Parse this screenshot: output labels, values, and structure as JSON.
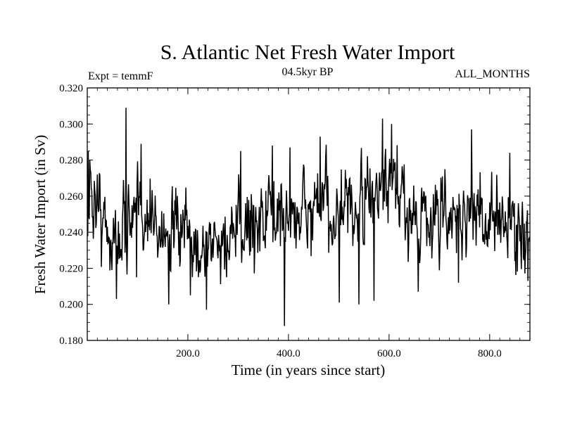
{
  "chart_data": {
    "type": "line",
    "title": "S. Atlantic Net Fresh Water Import",
    "subtitle_left": "Expt = temmF",
    "subtitle_center": "04.5kyr BP",
    "subtitle_right": "ALL_MONTHS",
    "xlabel": "Time (in years since start)",
    "ylabel": "Fresh Water Import (in Sv)",
    "xlim": [
      0,
      880
    ],
    "ylim": [
      0.18,
      0.32
    ],
    "x_ticks": [
      200,
      400,
      600,
      800
    ],
    "x_tick_labels": [
      "200.0",
      "400.0",
      "600.0",
      "800.0"
    ],
    "y_ticks": [
      0.18,
      0.2,
      0.22,
      0.24,
      0.26,
      0.28,
      0.3,
      0.32
    ],
    "y_tick_labels": [
      "0.180",
      "0.200",
      "0.220",
      "0.240",
      "0.260",
      "0.280",
      "0.300",
      "0.320"
    ],
    "grid": false,
    "series": [
      {
        "name": "Fresh Water Import",
        "color": "#000000",
        "x_start": 1,
        "x_step": 1,
        "n_points": 880,
        "anchors": [
          [
            0,
            0.252
          ],
          [
            15,
            0.262
          ],
          [
            30,
            0.246
          ],
          [
            45,
            0.24
          ],
          [
            60,
            0.234
          ],
          [
            80,
            0.25
          ],
          [
            90,
            0.243
          ],
          [
            110,
            0.255
          ],
          [
            130,
            0.246
          ],
          [
            150,
            0.241
          ],
          [
            170,
            0.237
          ],
          [
            190,
            0.238
          ],
          [
            210,
            0.233
          ],
          [
            225,
            0.233
          ],
          [
            245,
            0.232
          ],
          [
            270,
            0.234
          ],
          [
            300,
            0.238
          ],
          [
            320,
            0.244
          ],
          [
            340,
            0.248
          ],
          [
            360,
            0.25
          ],
          [
            380,
            0.249
          ],
          [
            400,
            0.248
          ],
          [
            420,
            0.25
          ],
          [
            440,
            0.252
          ],
          [
            460,
            0.251
          ],
          [
            480,
            0.254
          ],
          [
            500,
            0.247
          ],
          [
            520,
            0.25
          ],
          [
            540,
            0.252
          ],
          [
            560,
            0.257
          ],
          [
            580,
            0.262
          ],
          [
            600,
            0.262
          ],
          [
            620,
            0.258
          ],
          [
            640,
            0.253
          ],
          [
            660,
            0.249
          ],
          [
            680,
            0.25
          ],
          [
            700,
            0.248
          ],
          [
            720,
            0.247
          ],
          [
            740,
            0.247
          ],
          [
            760,
            0.254
          ],
          [
            780,
            0.249
          ],
          [
            800,
            0.246
          ],
          [
            820,
            0.245
          ],
          [
            840,
            0.247
          ],
          [
            860,
            0.242
          ],
          [
            880,
            0.23
          ]
        ],
        "noise_sd": 0.0115,
        "spikes": [
          [
            2,
            0.285
          ],
          [
            5,
            0.28
          ],
          [
            20,
            0.272
          ],
          [
            58,
            0.203
          ],
          [
            77,
            0.309
          ],
          [
            98,
            0.215
          ],
          [
            107,
            0.289
          ],
          [
            162,
            0.2
          ],
          [
            205,
            0.205
          ],
          [
            237,
            0.197
          ],
          [
            305,
            0.285
          ],
          [
            368,
            0.288
          ],
          [
            392,
            0.188
          ],
          [
            403,
            0.287
          ],
          [
            463,
            0.293
          ],
          [
            501,
            0.201
          ],
          [
            540,
            0.2
          ],
          [
            570,
            0.202
          ],
          [
            587,
            0.303
          ],
          [
            605,
            0.3
          ],
          [
            658,
            0.207
          ],
          [
            738,
            0.212
          ],
          [
            764,
            0.297
          ],
          [
            840,
            0.284
          ],
          [
            876,
            0.213
          ]
        ]
      }
    ]
  }
}
